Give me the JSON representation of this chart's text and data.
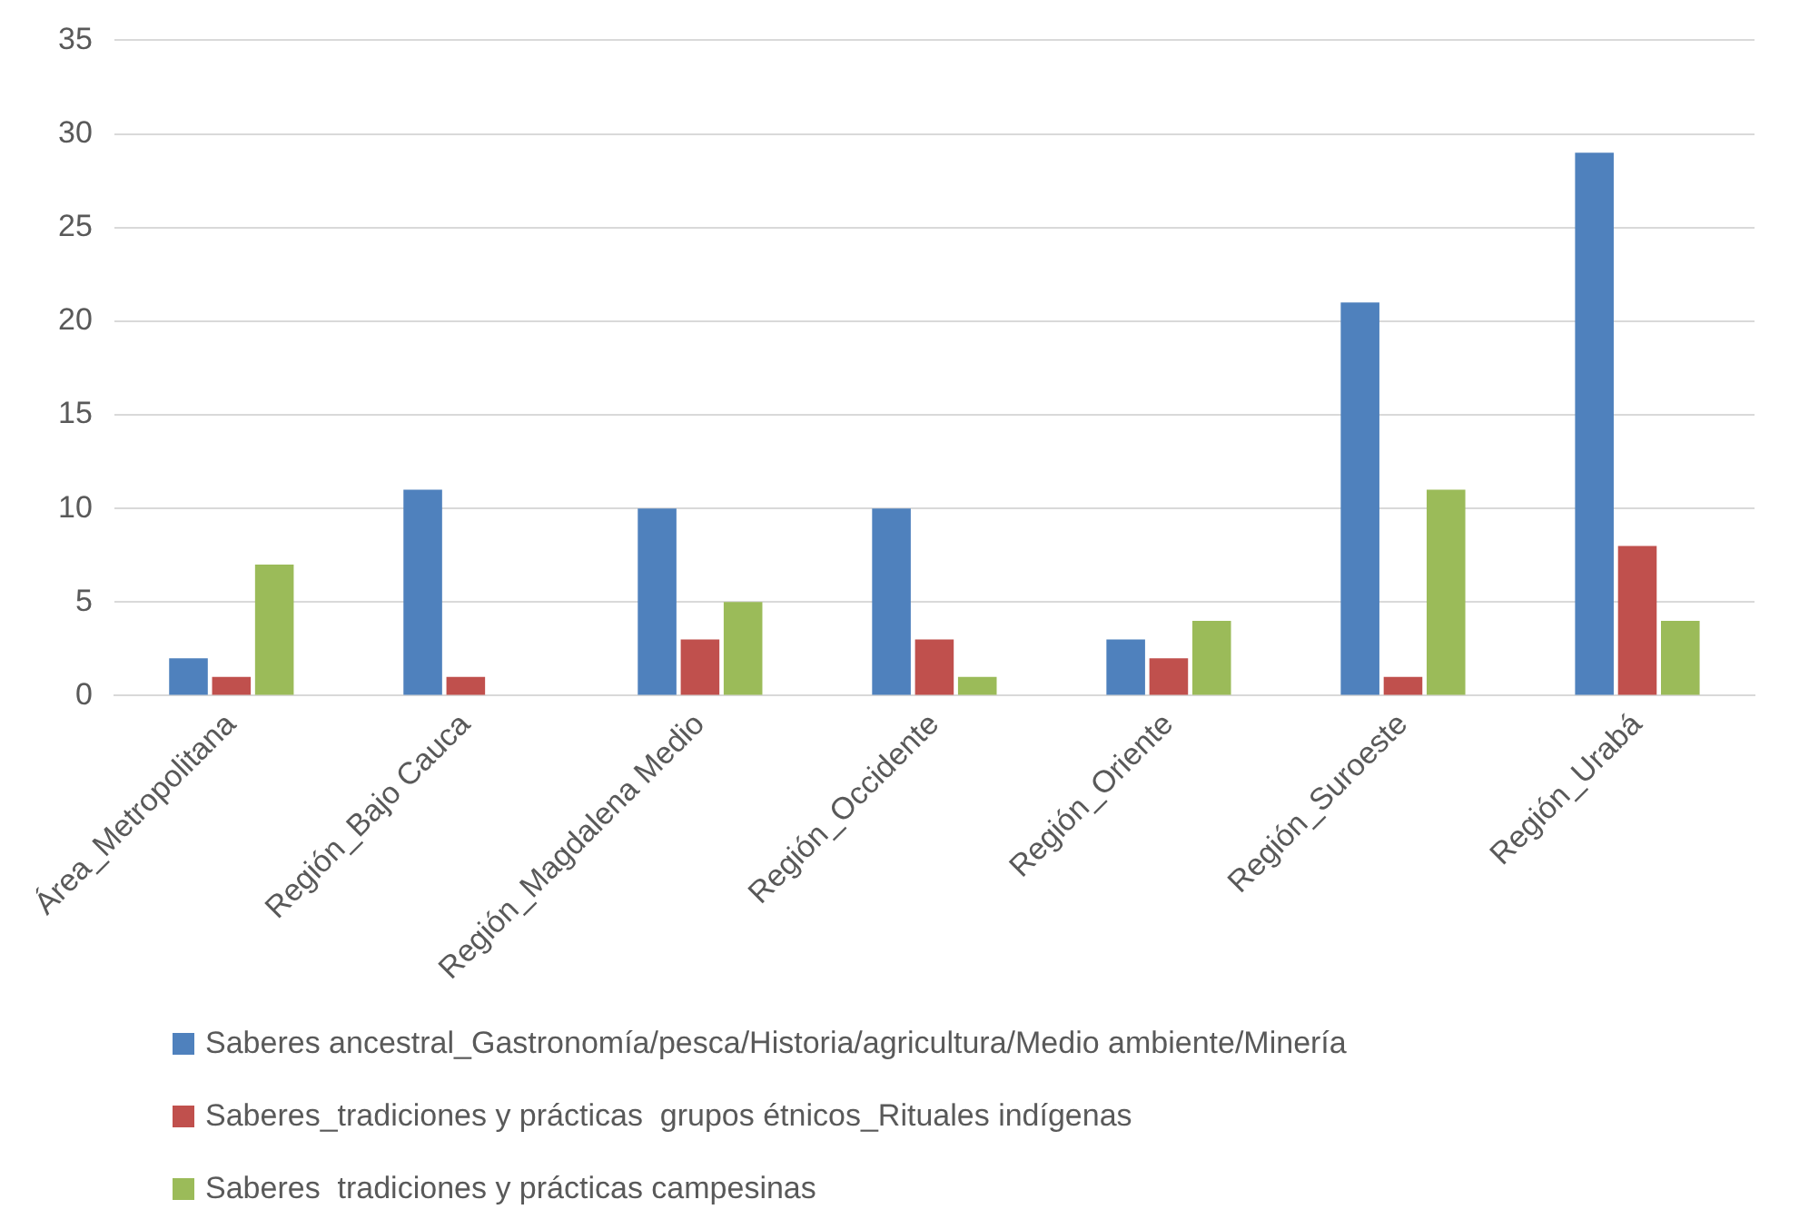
{
  "chart_data": {
    "type": "bar",
    "categories": [
      "Área_Metropolitana",
      "Región_Bajo Cauca",
      "Región_Magdalena Medio",
      "Región_Occidente",
      "Región_Oriente",
      "Región_Suroeste",
      "Región_Urabá"
    ],
    "series": [
      {
        "name": "Saberes ancestral_Gastronomía/pesca/Historia/agricultura/Medio ambiente/Minería",
        "color": "#4f81bd",
        "values": [
          2,
          11,
          10,
          10,
          3,
          21,
          29
        ]
      },
      {
        "name": "Saberes_tradiciones y prácticas  grupos étnicos_Rituales indígenas",
        "color": "#c0504d",
        "values": [
          1,
          1,
          3,
          3,
          2,
          1,
          8
        ]
      },
      {
        "name": "Saberes  tradiciones y prácticas campesinas",
        "color": "#9bbb59",
        "values": [
          7,
          0,
          5,
          1,
          4,
          11,
          4
        ]
      }
    ],
    "ylim": [
      0,
      35
    ],
    "yticks": [
      0,
      5,
      10,
      15,
      20,
      25,
      30,
      35
    ],
    "grid": "y",
    "legend": "bottom"
  }
}
